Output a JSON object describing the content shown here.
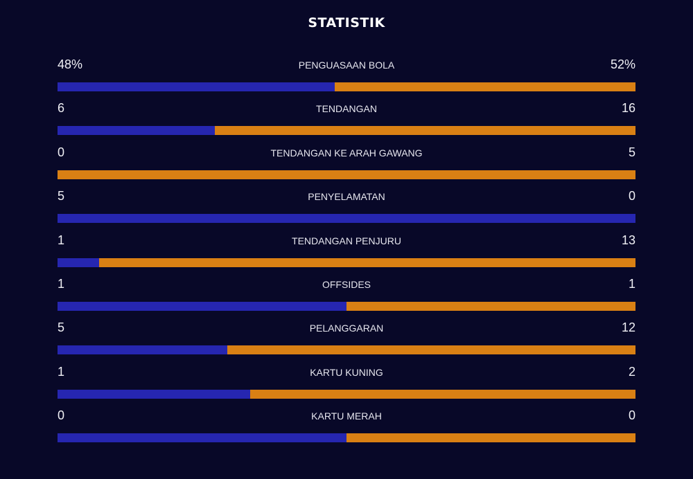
{
  "title": "STATISTIK",
  "colors": {
    "background": "#080828",
    "home": "#2626b0",
    "away": "#d98014"
  },
  "stats": [
    {
      "label": "PENGUASAAN BOLA",
      "home": "48%",
      "away": "52%",
      "home_value": 48,
      "away_value": 52
    },
    {
      "label": "TENDANGAN",
      "home": "6",
      "away": "16",
      "home_value": 6,
      "away_value": 16
    },
    {
      "label": "TENDANGAN KE ARAH GAWANG",
      "home": "0",
      "away": "5",
      "home_value": 0,
      "away_value": 5
    },
    {
      "label": "PENYELAMATAN",
      "home": "5",
      "away": "0",
      "home_value": 5,
      "away_value": 0
    },
    {
      "label": "TENDANGAN PENJURU",
      "home": "1",
      "away": "13",
      "home_value": 1,
      "away_value": 13
    },
    {
      "label": "OFFSIDES",
      "home": "1",
      "away": "1",
      "home_value": 1,
      "away_value": 1
    },
    {
      "label": "PELANGGARAN",
      "home": "5",
      "away": "12",
      "home_value": 5,
      "away_value": 12
    },
    {
      "label": "KARTU KUNING",
      "home": "1",
      "away": "2",
      "home_value": 1,
      "away_value": 2
    },
    {
      "label": "KARTU MERAH",
      "home": "0",
      "away": "0",
      "home_value": 0,
      "away_value": 0
    }
  ]
}
